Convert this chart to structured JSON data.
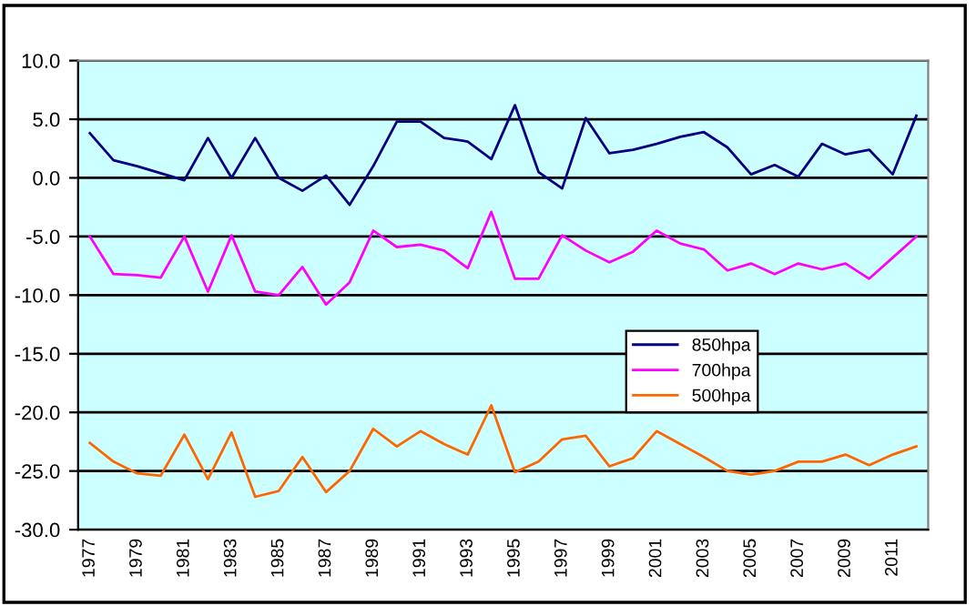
{
  "chart_data": {
    "type": "line",
    "categories": [
      "1977",
      null,
      "1979",
      null,
      "1981",
      null,
      "1983",
      null,
      "1985",
      null,
      "1987",
      null,
      "1989",
      null,
      "1991",
      null,
      "1993",
      null,
      "1995",
      null,
      "1997",
      null,
      "1999",
      null,
      "2001",
      null,
      "2003",
      null,
      "2005",
      null,
      "2007",
      null,
      "2009",
      null,
      "2011",
      null
    ],
    "series": [
      {
        "name": "850hpa",
        "color": "#000080",
        "values": [
          3.8,
          1.5,
          1.0,
          0.4,
          -0.2,
          3.4,
          0.0,
          3.4,
          0.0,
          -1.1,
          0.2,
          -2.3,
          1.0,
          4.8,
          4.8,
          3.4,
          3.1,
          1.6,
          6.2,
          0.5,
          -0.9,
          5.1,
          2.1,
          2.4,
          2.9,
          3.5,
          3.9,
          2.6,
          0.3,
          1.1,
          0.1,
          2.9,
          2.0,
          2.4,
          0.3,
          5.3
        ]
      },
      {
        "name": "700hpa",
        "color": "#ff00ff",
        "values": [
          -5.0,
          -8.2,
          -8.3,
          -8.5,
          -5.0,
          -9.7,
          -4.9,
          -9.7,
          -10.0,
          -7.6,
          -10.8,
          -8.9,
          -4.5,
          -5.9,
          -5.7,
          -6.2,
          -7.7,
          -2.9,
          -8.6,
          -8.6,
          -4.9,
          -6.2,
          -7.2,
          -6.3,
          -4.5,
          -5.6,
          -6.1,
          -7.9,
          -7.3,
          -8.2,
          -7.3,
          -7.8,
          -7.3,
          -8.6,
          -6.8,
          -5.0
        ]
      },
      {
        "name": "500hpa",
        "color": "#ff6600",
        "values": [
          -22.6,
          -24.2,
          -25.2,
          -25.4,
          -21.9,
          -25.7,
          -21.7,
          -27.2,
          -26.7,
          -23.8,
          -26.8,
          -25.0,
          -21.4,
          -22.9,
          -21.6,
          -22.7,
          -23.6,
          -19.4,
          -25.1,
          -24.2,
          -22.3,
          -22.0,
          -24.6,
          -23.9,
          -21.6,
          -22.7,
          -23.8,
          -25.0,
          -25.3,
          -25.0,
          -24.2,
          -24.2,
          -23.6,
          -24.5,
          -23.6,
          -22.9
        ]
      }
    ],
    "ylim": [
      -30,
      10
    ],
    "yticks": [
      {
        "value": -30,
        "label": "-30.0"
      },
      {
        "value": -25,
        "label": "-25.0"
      },
      {
        "value": -20,
        "label": "-20.0"
      },
      {
        "value": -15,
        "label": "-15.0"
      },
      {
        "value": -10,
        "label": "-10.0"
      },
      {
        "value": -5,
        "label": "-5.0"
      },
      {
        "value": 0,
        "label": "0.0"
      },
      {
        "value": 5,
        "label": "5.0"
      },
      {
        "value": 10,
        "label": "10.0"
      }
    ],
    "grid": "y",
    "legend": "center right",
    "marker": "none",
    "line_style": "solid"
  }
}
